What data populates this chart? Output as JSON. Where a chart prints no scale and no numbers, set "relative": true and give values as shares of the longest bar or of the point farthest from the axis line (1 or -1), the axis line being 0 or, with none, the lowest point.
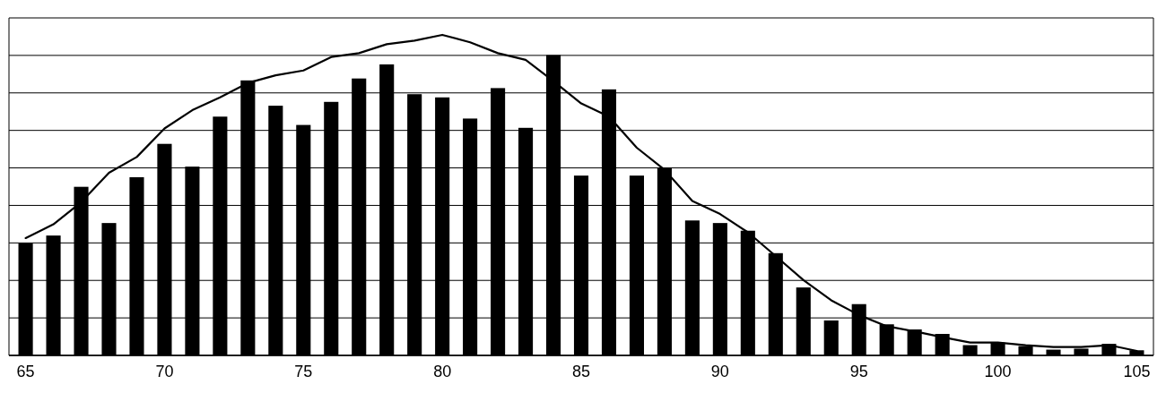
{
  "chart_data": {
    "type": "bar",
    "relative": true,
    "grid": "y",
    "tick_labels": "x",
    "x": [
      65,
      66,
      67,
      68,
      69,
      70,
      71,
      72,
      73,
      74,
      75,
      76,
      77,
      78,
      79,
      80,
      81,
      82,
      83,
      84,
      85,
      86,
      87,
      88,
      89,
      90,
      91,
      92,
      93,
      94,
      95,
      96,
      97,
      98,
      99,
      100,
      101,
      102,
      103,
      104,
      105
    ],
    "xlim": [
      64.4,
      105.6
    ],
    "xticks": [
      65,
      70,
      75,
      80,
      85,
      90,
      95,
      100,
      105
    ],
    "series": [
      {
        "color": "#000000",
        "values": [
          0.35,
          0.374,
          0.526,
          0.413,
          0.556,
          0.66,
          0.589,
          0.745,
          0.858,
          0.779,
          0.719,
          0.791,
          0.864,
          0.908,
          0.815,
          0.805,
          0.739,
          0.834,
          0.71,
          0.937,
          0.561,
          0.83,
          0.561,
          0.585,
          0.421,
          0.413,
          0.389,
          0.319,
          0.212,
          0.109,
          0.16,
          0.097,
          0.081,
          0.067,
          0.032,
          0.04,
          0.029,
          0.018,
          0.021,
          0.036,
          0.016
        ]
      },
      {
        "type": "line",
        "color": "#000000",
        "marker": "none",
        "line_style": "solid",
        "values": [
          0.366,
          0.409,
          0.478,
          0.57,
          0.619,
          0.708,
          0.765,
          0.805,
          0.85,
          0.874,
          0.889,
          0.931,
          0.943,
          0.971,
          0.982,
          1,
          0.977,
          0.943,
          0.922,
          0.856,
          0.786,
          0.745,
          0.648,
          0.579,
          0.482,
          0.441,
          0.384,
          0.31,
          0.235,
          0.172,
          0.126,
          0.091,
          0.075,
          0.057,
          0.04,
          0.04,
          0.032,
          0.026,
          0.026,
          0.032,
          0.014
        ]
      }
    ]
  }
}
